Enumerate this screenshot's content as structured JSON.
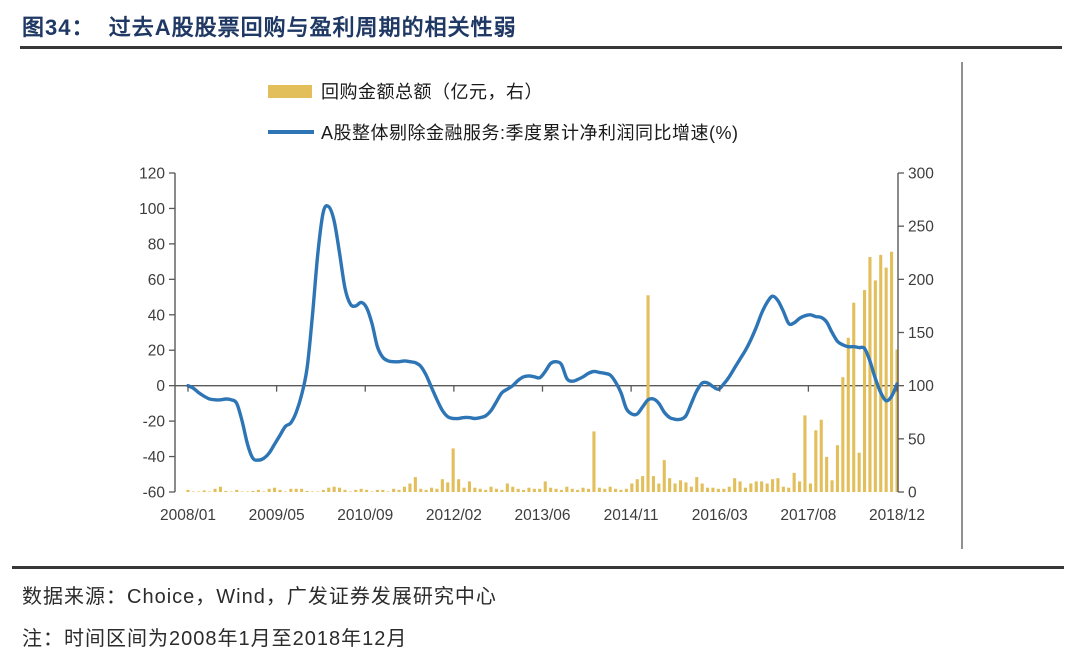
{
  "page": {
    "title": "图34：  过去A股股票回购与盈利周期的相关性弱"
  },
  "legend": {
    "items": [
      {
        "label": "回购金额总额（亿元，右）",
        "swatch": "bar",
        "color": "#E2BF5B"
      },
      {
        "label": "A股整体剔除金融服务:季度累计净利润同比增速(%)",
        "swatch": "line",
        "color": "#2E75B6"
      }
    ]
  },
  "chart_data": {
    "type": "combo-bar-line",
    "x_frequency": "monthly",
    "x_start": "2008/01",
    "x_end": "2018/12",
    "x_tick_labels": [
      "2008/01",
      "2009/05",
      "2010/09",
      "2012/02",
      "2013/06",
      "2014/11",
      "2016/03",
      "2017/08",
      "2018/12"
    ],
    "left_axis": {
      "ticks": [
        120,
        100,
        80,
        60,
        40,
        20,
        0,
        -20,
        -40,
        -60
      ],
      "min": -60,
      "max": 120
    },
    "right_axis": {
      "ticks": [
        300,
        250,
        200,
        150,
        100,
        50,
        0
      ],
      "min": 0,
      "max": 300
    },
    "grid": "zero-line-only",
    "legend_position": "top",
    "years": [
      2008,
      2009,
      2010,
      2011,
      2012,
      2013,
      2014,
      2015,
      2016,
      2017,
      2018
    ],
    "series": [
      {
        "name": "回购金额总额（亿元，右）",
        "type": "bar",
        "axis": "right",
        "color": "#E2BF5B",
        "values_by_year": [
          [
            2,
            0.5,
            0.5,
            1.5,
            0.5,
            3,
            5,
            1,
            0.5,
            2,
            0.5,
            0.5
          ],
          [
            1,
            2,
            0.5,
            3,
            4,
            2,
            0.5,
            3,
            3,
            3,
            1,
            0.5
          ],
          [
            0.5,
            2,
            4,
            5,
            4,
            2,
            0.5,
            2,
            3,
            2,
            0.5,
            2
          ],
          [
            2,
            0.5,
            3,
            2,
            5,
            8,
            14,
            3,
            2,
            4,
            3,
            12
          ],
          [
            9,
            41,
            12,
            4,
            10,
            4,
            3,
            2,
            5,
            3,
            2,
            8
          ],
          [
            5,
            3,
            2,
            4,
            3,
            3,
            10,
            4,
            3,
            2,
            5,
            3
          ],
          [
            2,
            4,
            3,
            57,
            4,
            3,
            5,
            3,
            2,
            3,
            8,
            12
          ],
          [
            15,
            185,
            15,
            8,
            30,
            13,
            8,
            11,
            9,
            5,
            14,
            8
          ],
          [
            4,
            4,
            3,
            3,
            5,
            13,
            10,
            4,
            8,
            10,
            10,
            8
          ],
          [
            12,
            13,
            5,
            4,
            18,
            10,
            72,
            8,
            58,
            68,
            33,
            11
          ],
          [
            44,
            108,
            145,
            178,
            37,
            190,
            221,
            199,
            223,
            211,
            226,
            134
          ]
        ]
      },
      {
        "name": "A股整体剔除金融服务:季度累计净利润同比增速(%)",
        "type": "line",
        "axis": "left",
        "color": "#2E75B6",
        "values_by_year": [
          [
            0,
            -1.5,
            -4,
            -6,
            -7.5,
            -8,
            -8,
            -7.5,
            -8,
            -10,
            -20,
            -33
          ],
          [
            -41,
            -42,
            -41,
            -38,
            -33,
            -28,
            -23,
            -21,
            -15,
            -5,
            10,
            40
          ],
          [
            75,
            98,
            101,
            93,
            75,
            55,
            46,
            45,
            47,
            44,
            35,
            22
          ],
          [
            16,
            14,
            13.5,
            13.5,
            14,
            13.5,
            13,
            11,
            6,
            -1,
            -8,
            -14
          ],
          [
            -17.5,
            -18.5,
            -18.5,
            -18,
            -18,
            -18.5,
            -18,
            -17,
            -14,
            -9,
            -4,
            -2
          ],
          [
            0,
            3,
            5,
            5.5,
            5,
            4.5,
            8,
            12.5,
            13.5,
            12,
            4,
            2.5
          ],
          [
            3.5,
            5,
            7,
            8,
            7.5,
            7,
            6,
            2,
            -4,
            -13,
            -16,
            -16
          ],
          [
            -12,
            -8,
            -7.5,
            -10,
            -15,
            -18,
            -19,
            -19,
            -17,
            -10,
            -3,
            1.5
          ],
          [
            1.5,
            -0.5,
            -2,
            1,
            5,
            10,
            15,
            20,
            26,
            33,
            41,
            47
          ],
          [
            50.5,
            48,
            42,
            35,
            35.5,
            38,
            39.5,
            40,
            39,
            38.5,
            36,
            30
          ],
          [
            25,
            23,
            22,
            22,
            21.5,
            21,
            14,
            4,
            -4,
            -8.5,
            -6,
            1
          ]
        ]
      }
    ]
  },
  "footer": {
    "source": "数据来源：Choice，Wind，广发证券发展研究中心",
    "note": "注：时间区间为2008年1月至2018年12月"
  }
}
